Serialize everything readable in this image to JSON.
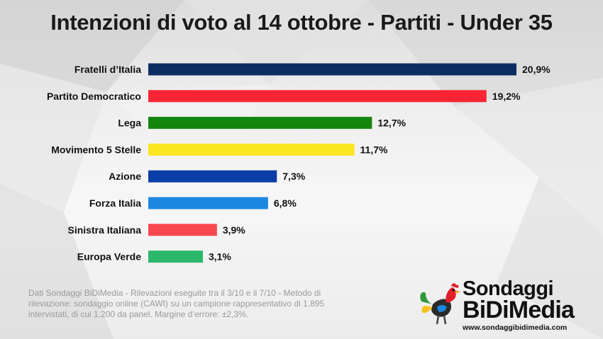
{
  "title": "Intenzioni di voto al 14 ottobre - Partiti - Under 35",
  "chart_data": {
    "type": "bar",
    "orientation": "horizontal",
    "categories": [
      "Fratelli d’Italia",
      "Partito Democratico",
      "Lega",
      "Movimento 5 Stelle",
      "Azione",
      "Forza Italia",
      "Sinistra Italiana",
      "Europa Verde"
    ],
    "values": [
      20.9,
      19.2,
      12.7,
      11.7,
      7.3,
      6.8,
      3.9,
      3.1
    ],
    "value_labels": [
      "20,9%",
      "19,2%",
      "12,7%",
      "11,7%",
      "7,3%",
      "6,8%",
      "3,9%",
      "3,1%"
    ],
    "colors": [
      "#0c2d62",
      "#fb2434",
      "#14860e",
      "#fbe622",
      "#0b3ea8",
      "#1c87e0",
      "#f8474e",
      "#2cb86b"
    ],
    "xlim": [
      0,
      20.9
    ],
    "grid": false,
    "xlabel": "",
    "ylabel": ""
  },
  "footnote": "Dati Sondaggi BiDiMedia - Rilevazioni eseguite tra il 3/10 e il 7/10 - Metodo di rilevazione: sondaggio online (CAWI) su un campione rappresentativo di 1.895 intervistati, di cui 1.200 da panel. Margine d’errore: ±2,3%.",
  "logo": {
    "line1": "Sondaggi",
    "line2": "BiDiMedia",
    "url": "www.sondaggibidimedia.com",
    "icon": "rooster-icon"
  }
}
